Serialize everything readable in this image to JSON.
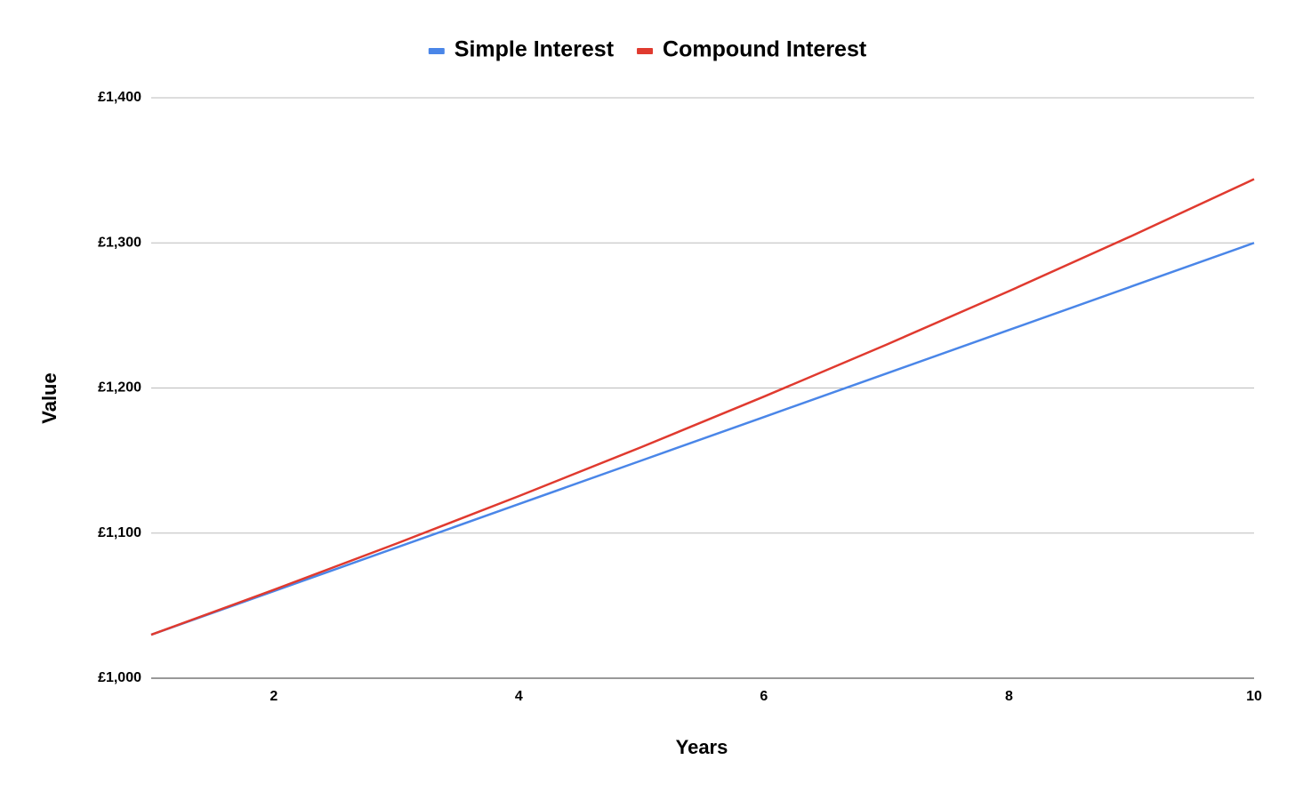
{
  "chart_data": {
    "type": "line",
    "x_label": "Years",
    "y_label": "Value",
    "x": [
      1,
      2,
      3,
      4,
      5,
      6,
      7,
      8,
      9,
      10
    ],
    "series": [
      {
        "name": "Simple Interest",
        "color": "#4a86e8",
        "values": [
          1030,
          1060,
          1090,
          1120,
          1150,
          1180,
          1210,
          1240,
          1270,
          1300
        ]
      },
      {
        "name": "Compound Interest",
        "color": "#e03a2f",
        "values": [
          1030,
          1060.9,
          1092.73,
          1125.51,
          1159.27,
          1194.05,
          1229.87,
          1266.77,
          1304.77,
          1343.92
        ]
      }
    ],
    "xlim": [
      1,
      10
    ],
    "xticks": [
      2,
      4,
      6,
      8,
      10
    ],
    "ylim": [
      1000,
      1400
    ],
    "yticks": [
      {
        "value": 1000,
        "label": "£1,000"
      },
      {
        "value": 1100,
        "label": "£1,100"
      },
      {
        "value": 1200,
        "label": "£1,200"
      },
      {
        "value": 1300,
        "label": "£1,300"
      },
      {
        "value": 1400,
        "label": "£1,400"
      }
    ],
    "grid": true,
    "legend": "top"
  }
}
